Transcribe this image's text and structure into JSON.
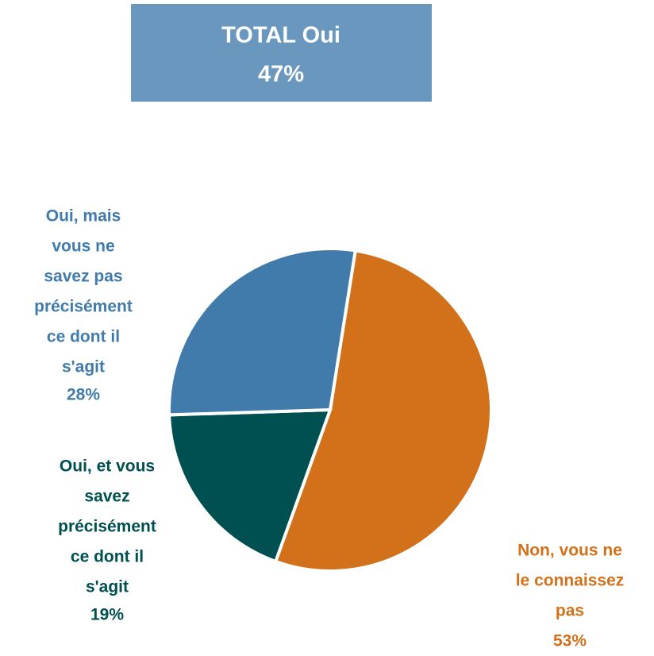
{
  "annotation": {
    "title": "TOTAL Oui",
    "value": 47,
    "value_label": "47%"
  },
  "chart_data": {
    "type": "pie",
    "categories": [
      [
        "Non, vous ne",
        "le connaissez",
        "pas"
      ],
      [
        "Oui, et vous",
        "savez",
        "précisément",
        "ce dont il",
        "s'agit"
      ],
      [
        "Oui, mais",
        "vous ne",
        "savez pas",
        "précisément",
        "ce dont il",
        "s'agit"
      ]
    ],
    "values": [
      53,
      19,
      28
    ],
    "value_labels": [
      "53%",
      "19%",
      "28%"
    ],
    "colors": [
      "#d2711a",
      "#004f51",
      "#417bab"
    ]
  }
}
